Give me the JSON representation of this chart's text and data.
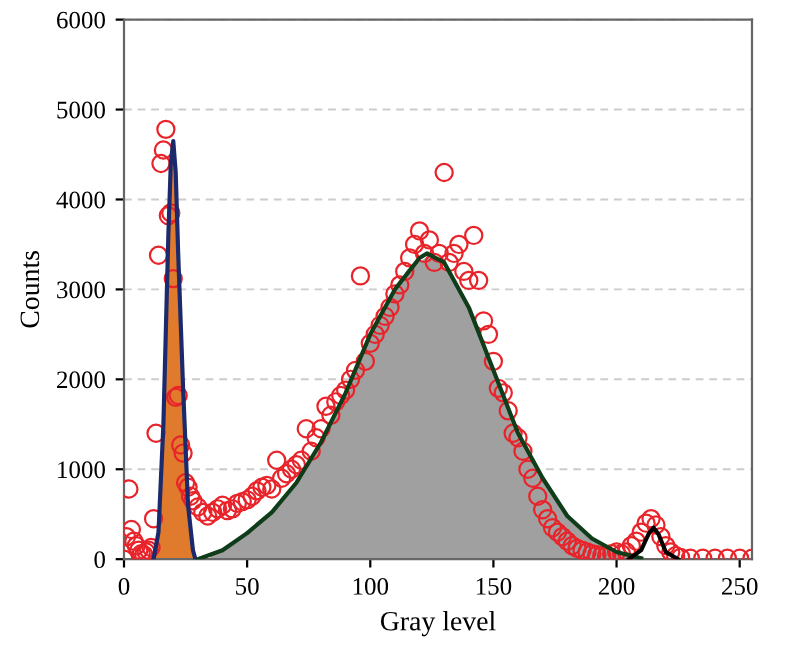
{
  "chart_data": {
    "type": "line",
    "xlabel": "Gray level",
    "ylabel": "Counts",
    "xlim": [
      0,
      255
    ],
    "ylim": [
      0,
      6000
    ],
    "xticks": [
      0,
      50,
      100,
      150,
      200,
      250
    ],
    "yticks": [
      0,
      1000,
      2000,
      3000,
      4000,
      5000,
      6000
    ],
    "grid": "y",
    "series": [
      {
        "color": "#1a2a6c",
        "x": [
          12,
          14,
          16,
          18,
          19,
          20,
          21,
          22,
          24,
          26,
          28,
          29
        ],
        "values": [
          0,
          300,
          1500,
          3600,
          4400,
          4650,
          4300,
          3400,
          1900,
          600,
          100,
          0
        ]
      },
      {
        "color": "#0f3d1a",
        "x": [
          30,
          40,
          50,
          60,
          70,
          80,
          90,
          100,
          110,
          120,
          123,
          130,
          140,
          150,
          160,
          170,
          180,
          190,
          200,
          210
        ],
        "values": [
          0,
          100,
          290,
          520,
          850,
          1300,
          1850,
          2500,
          3000,
          3350,
          3400,
          3300,
          2800,
          2100,
          1400,
          900,
          480,
          230,
          80,
          10
        ]
      },
      {
        "color": "#000000",
        "x": [
          205,
          210,
          213,
          215,
          217,
          220,
          225
        ],
        "values": [
          0,
          100,
          280,
          350,
          280,
          80,
          0
        ]
      },
      {
        "type": "area",
        "color": "#e07b2e",
        "x": [
          13,
          15,
          17,
          19.5,
          21.5,
          23,
          25,
          27,
          28.5
        ],
        "values": [
          100,
          800,
          2600,
          4650,
          3900,
          2700,
          1200,
          350,
          0
        ]
      },
      {
        "type": "area",
        "color": "#a0a0a0",
        "x": [
          35,
          45,
          55,
          65,
          75,
          85,
          95,
          105,
          115,
          125,
          135,
          145,
          155,
          165,
          175,
          185,
          195,
          205
        ],
        "values": [
          40,
          190,
          400,
          680,
          1060,
          1570,
          2170,
          2760,
          3220,
          3390,
          3080,
          2480,
          1750,
          1130,
          680,
          330,
          140,
          40
        ]
      },
      {
        "type": "scatter",
        "color": "#e8242a",
        "marker": "circle",
        "x": [
          0,
          1,
          2,
          3,
          4,
          5,
          6,
          7,
          8,
          9,
          10,
          11,
          12,
          13,
          14,
          15,
          16,
          17,
          18,
          19,
          20,
          21,
          22,
          23,
          24,
          25,
          26,
          27,
          28,
          30,
          32,
          34,
          36,
          38,
          40,
          42,
          44,
          46,
          48,
          50,
          52,
          54,
          56,
          58,
          60,
          62,
          64,
          66,
          68,
          70,
          72,
          74,
          76,
          78,
          80,
          82,
          84,
          86,
          88,
          90,
          92,
          94,
          96,
          98,
          100,
          102,
          104,
          106,
          108,
          110,
          112,
          114,
          116,
          118,
          120,
          122,
          124,
          126,
          128,
          130,
          132,
          134,
          136,
          138,
          140,
          142,
          144,
          146,
          148,
          150,
          152,
          154,
          156,
          158,
          160,
          162,
          164,
          166,
          168,
          170,
          172,
          174,
          176,
          178,
          180,
          182,
          184,
          186,
          188,
          190,
          192,
          194,
          196,
          198,
          200,
          202,
          204,
          206,
          208,
          210,
          212,
          214,
          216,
          218,
          220,
          222,
          224,
          226,
          230,
          235,
          240,
          245,
          250,
          255
        ],
        "values": [
          0,
          250,
          780,
          330,
          200,
          150,
          100,
          60,
          50,
          80,
          100,
          130,
          450,
          1400,
          3380,
          4400,
          4550,
          4780,
          3820,
          3850,
          3120,
          1800,
          1820,
          1270,
          1180,
          850,
          800,
          700,
          650,
          580,
          520,
          480,
          520,
          560,
          600,
          540,
          560,
          620,
          640,
          660,
          700,
          760,
          800,
          820,
          780,
          1100,
          900,
          950,
          1000,
          1050,
          1100,
          1450,
          1200,
          1350,
          1450,
          1700,
          1600,
          1750,
          1820,
          1880,
          2000,
          2100,
          3150,
          2200,
          2400,
          2500,
          2600,
          2700,
          2800,
          2950,
          3050,
          3200,
          3350,
          3500,
          3650,
          3400,
          3550,
          3300,
          3400,
          4300,
          3300,
          3400,
          3500,
          3200,
          3100,
          3600,
          3100,
          2650,
          2500,
          2200,
          1900,
          1850,
          1650,
          1400,
          1350,
          1200,
          1000,
          900,
          700,
          550,
          450,
          350,
          300,
          250,
          200,
          150,
          120,
          100,
          80,
          60,
          50,
          40,
          40,
          60,
          80,
          60,
          80,
          150,
          200,
          300,
          400,
          450,
          380,
          250,
          150,
          80,
          40,
          20,
          10,
          10,
          10,
          10,
          10,
          10
        ]
      }
    ]
  }
}
